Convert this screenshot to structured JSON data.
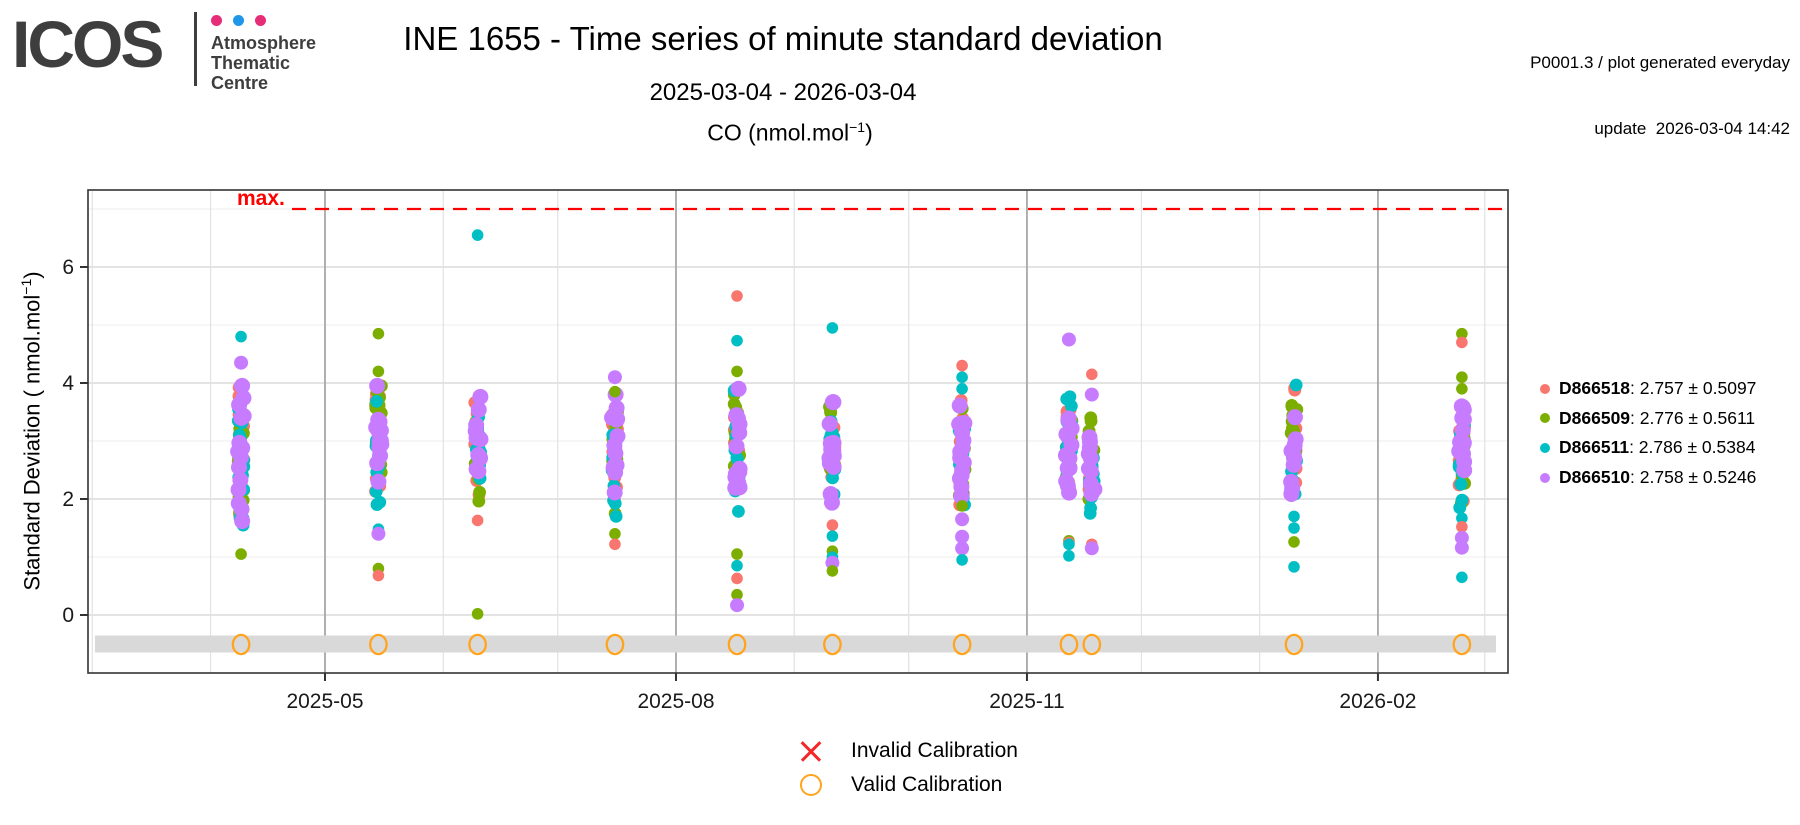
{
  "header": {
    "logo": {
      "text": "ICOS",
      "tagline_lines": [
        "Atmosphere",
        "Thematic",
        "Centre"
      ],
      "dot_colors": [
        "#e62d77",
        "#1e97e8",
        "#e62d77"
      ]
    },
    "title": "INE 1655 - Time series of minute standard deviation",
    "meta_line1": "P0001.3 / plot generated everyday",
    "meta_line2": "update  2026-03-04 14:42",
    "subtitle": "2025-03-04 - 2026-03-04"
  },
  "chart_data": {
    "type": "scatter",
    "title": {
      "pre": "CO (nmol.mol",
      "sup": "−1",
      "post": ")"
    },
    "ylabel": {
      "pre": "Standard Deviation ( nmol.mol",
      "sup": "−1",
      "post": ")"
    },
    "x_range": [
      "2025-02-28",
      "2026-03-07"
    ],
    "ylim": [
      -1.0,
      7.33
    ],
    "y_ticks": [
      0,
      2,
      4,
      6
    ],
    "x_ticks": [
      {
        "date": "2025-05-01",
        "label": "2025-05"
      },
      {
        "date": "2025-08-01",
        "label": "2025-08"
      },
      {
        "date": "2025-11-01",
        "label": "2025-11"
      },
      {
        "date": "2026-02-01",
        "label": "2026-02"
      }
    ],
    "grid": {
      "h_minor": [
        1,
        3,
        5,
        7
      ],
      "h_major": [
        0,
        2,
        4,
        6
      ],
      "v_monthly": true
    },
    "max_line": {
      "value": 7,
      "label": "max.",
      "color": "#fe0000"
    },
    "legend_position": "right",
    "series": [
      {
        "id": "D866518",
        "color": "#F8766D",
        "mean": "2.757",
        "sd": "0.5097"
      },
      {
        "id": "D866509",
        "color": "#7CAE00",
        "mean": "2.776",
        "sd": "0.5611"
      },
      {
        "id": "D866511",
        "color": "#00BFC4",
        "mean": "2.786",
        "sd": "0.5384"
      },
      {
        "id": "D866510",
        "color": "#C77CFF",
        "mean": "2.758",
        "sd": "0.5246"
      }
    ],
    "point_columns": [
      {
        "date": "2025-04-09",
        "body": {
          "min": 1.55,
          "max": 3.95,
          "n": 15
        },
        "outliers": [
          {
            "s": 2,
            "y": 4.8
          },
          {
            "s": 3,
            "y": 4.35
          },
          {
            "s": 1,
            "y": 1.05
          }
        ]
      },
      {
        "date": "2025-05-15",
        "body": {
          "min": 1.8,
          "max": 3.95,
          "n": 13
        },
        "outliers": [
          {
            "s": 1,
            "y": 4.85
          },
          {
            "s": 1,
            "y": 4.2
          },
          {
            "s": 2,
            "y": 1.48
          },
          {
            "s": 3,
            "y": 1.4
          },
          {
            "s": 1,
            "y": 0.8
          },
          {
            "s": 0,
            "y": 0.68
          }
        ]
      },
      {
        "date": "2025-06-10",
        "body": {
          "min": 1.85,
          "max": 3.8,
          "n": 11
        },
        "outliers": [
          {
            "s": 2,
            "y": 6.55
          },
          {
            "s": 0,
            "y": 1.63
          },
          {
            "s": 1,
            "y": 0.02
          }
        ]
      },
      {
        "date": "2025-07-16",
        "body": {
          "min": 1.7,
          "max": 3.8,
          "n": 13
        },
        "outliers": [
          {
            "s": 3,
            "y": 4.1
          },
          {
            "s": 1,
            "y": 3.85
          },
          {
            "s": 1,
            "y": 1.4
          },
          {
            "s": 0,
            "y": 1.22
          }
        ]
      },
      {
        "date": "2025-08-17",
        "body": {
          "min": 1.6,
          "max": 3.9,
          "n": 14
        },
        "outliers": [
          {
            "s": 0,
            "y": 5.5
          },
          {
            "s": 2,
            "y": 4.73
          },
          {
            "s": 1,
            "y": 4.2
          },
          {
            "s": 1,
            "y": 1.05
          },
          {
            "s": 2,
            "y": 0.85
          },
          {
            "s": 0,
            "y": 0.63
          },
          {
            "s": 1,
            "y": 0.35
          },
          {
            "s": 3,
            "y": 0.17
          }
        ]
      },
      {
        "date": "2025-09-11",
        "body": {
          "min": 1.8,
          "max": 3.67,
          "n": 13
        },
        "outliers": [
          {
            "s": 2,
            "y": 4.95
          },
          {
            "s": 0,
            "y": 1.55
          },
          {
            "s": 2,
            "y": 1.36
          },
          {
            "s": 1,
            "y": 1.1
          },
          {
            "s": 2,
            "y": 1.0
          },
          {
            "s": 3,
            "y": 0.9
          },
          {
            "s": 1,
            "y": 0.76
          }
        ]
      },
      {
        "date": "2025-10-15",
        "body": {
          "min": 1.9,
          "max": 3.7,
          "n": 14
        },
        "outliers": [
          {
            "s": 0,
            "y": 4.3
          },
          {
            "s": 2,
            "y": 4.1
          },
          {
            "s": 2,
            "y": 3.9
          },
          {
            "s": 1,
            "y": 1.88
          },
          {
            "s": 3,
            "y": 1.65
          },
          {
            "s": 3,
            "y": 1.35
          },
          {
            "s": 3,
            "y": 1.15
          },
          {
            "s": 2,
            "y": 0.95
          }
        ]
      },
      {
        "date": "2025-11-12",
        "body": {
          "min": 1.75,
          "max": 3.9,
          "n": 13
        },
        "outliers": [
          {
            "s": 3,
            "y": 4.75
          },
          {
            "s": 1,
            "y": 1.28
          },
          {
            "s": 0,
            "y": 1.25
          },
          {
            "s": 2,
            "y": 1.22
          },
          {
            "s": 2,
            "y": 1.02
          }
        ]
      },
      {
        "date": "2025-11-18",
        "body": {
          "min": 1.7,
          "max": 3.4,
          "n": 10
        },
        "outliers": [
          {
            "s": 0,
            "y": 4.15
          },
          {
            "s": 3,
            "y": 3.8
          },
          {
            "s": 0,
            "y": 1.22
          },
          {
            "s": 3,
            "y": 1.15
          }
        ]
      },
      {
        "date": "2026-01-10",
        "body": {
          "min": 1.95,
          "max": 4.0,
          "n": 10
        },
        "outliers": [
          {
            "s": 2,
            "y": 1.7
          },
          {
            "s": 2,
            "y": 1.5
          },
          {
            "s": 1,
            "y": 1.26
          },
          {
            "s": 2,
            "y": 0.83
          }
        ]
      },
      {
        "date": "2026-02-23",
        "body": {
          "min": 1.85,
          "max": 3.75,
          "n": 13
        },
        "outliers": [
          {
            "s": 1,
            "y": 4.85
          },
          {
            "s": 0,
            "y": 4.7
          },
          {
            "s": 1,
            "y": 4.1
          },
          {
            "s": 1,
            "y": 3.9
          },
          {
            "s": 2,
            "y": 1.67
          },
          {
            "s": 0,
            "y": 1.52
          },
          {
            "s": 3,
            "y": 1.33
          },
          {
            "s": 3,
            "y": 1.16
          },
          {
            "s": 2,
            "y": 0.65
          }
        ]
      }
    ],
    "calibrations": {
      "band_y": -0.5,
      "valid_dates": [
        "2025-04-09",
        "2025-05-15",
        "2025-06-10",
        "2025-07-16",
        "2025-08-17",
        "2025-09-11",
        "2025-10-15",
        "2025-11-12",
        "2025-11-18",
        "2026-01-10",
        "2026-02-23"
      ],
      "invalid_dates": []
    }
  },
  "legend_bottom": {
    "invalid_label": "Invalid Calibration",
    "valid_label": "Valid Calibration",
    "invalid_color": "#f42727",
    "valid_color": "#ffa41c"
  },
  "colors": {
    "band": "#d9d9d9",
    "panel_border": "#3f3f3f",
    "grid_minor": "#ececec",
    "grid_major": "#d2d2d2",
    "grid_month": "#e2e2e2",
    "grid_quarter": "#a8a8a8"
  }
}
